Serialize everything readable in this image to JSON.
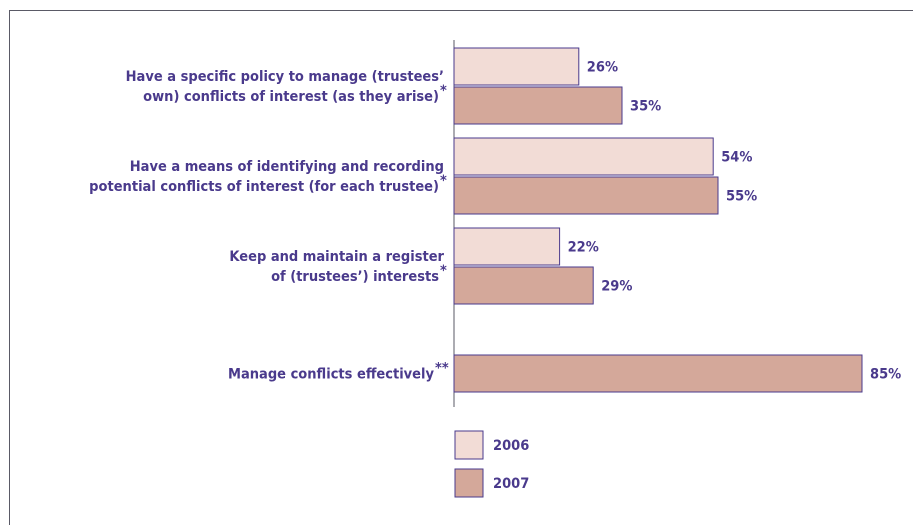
{
  "chart_data": {
    "type": "bar",
    "orientation": "horizontal",
    "categories": [
      {
        "lines": [
          "Have a specific policy to manage (trustees’",
          "own) conflicts of interest (as they arise)"
        ],
        "marker": "*"
      },
      {
        "lines": [
          "Have a means of identifying and recording",
          "potential conflicts of interest (for each trustee)"
        ],
        "marker": "*"
      },
      {
        "lines": [
          "Keep and maintain a register",
          "of (trustees’) interests"
        ],
        "marker": "*"
      },
      {
        "lines": [
          "Manage conflicts effectively"
        ],
        "marker": "**"
      }
    ],
    "series": [
      {
        "name": "2006",
        "color": "#f2dcd6",
        "values": [
          26,
          54,
          22,
          null
        ],
        "labels": [
          "26%",
          "54%",
          "22%",
          null
        ]
      },
      {
        "name": "2007",
        "color": "#d4a89a",
        "values": [
          35,
          55,
          29,
          85
        ],
        "labels": [
          "35%",
          "55%",
          "29%",
          "85%"
        ]
      }
    ],
    "xlim": [
      0,
      100
    ],
    "unit": "%",
    "legend_position": "bottom-left",
    "bar_stroke_color": "#4a3a8c",
    "text_color": "#4a3a8c"
  }
}
